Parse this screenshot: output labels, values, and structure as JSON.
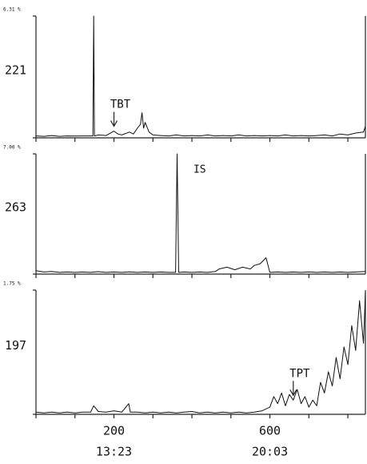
{
  "chart_data": [
    {
      "type": "line",
      "scale_label": "6.31 %",
      "ion_label": "221",
      "xlim": [
        0,
        845
      ],
      "ylim": [
        0,
        6.31
      ],
      "xticks": [
        0,
        100,
        200,
        300,
        400,
        500,
        600,
        700,
        800
      ],
      "x": [
        0,
        20,
        40,
        60,
        80,
        100,
        120,
        140,
        146,
        148,
        150,
        160,
        180,
        200,
        210,
        220,
        240,
        250,
        260,
        268,
        272,
        276,
        280,
        290,
        300,
        320,
        340,
        360,
        380,
        400,
        420,
        440,
        460,
        480,
        500,
        520,
        540,
        560,
        580,
        600,
        620,
        640,
        660,
        680,
        700,
        720,
        740,
        760,
        780,
        800,
        820,
        840,
        845
      ],
      "values": [
        0.1,
        0.08,
        0.12,
        0.08,
        0.1,
        0.09,
        0.1,
        0.1,
        0.1,
        6.31,
        0.1,
        0.15,
        0.12,
        0.35,
        0.2,
        0.15,
        0.3,
        0.2,
        0.5,
        0.7,
        1.3,
        0.5,
        0.8,
        0.3,
        0.15,
        0.12,
        0.1,
        0.15,
        0.1,
        0.12,
        0.1,
        0.15,
        0.1,
        0.12,
        0.1,
        0.15,
        0.1,
        0.12,
        0.1,
        0.12,
        0.1,
        0.15,
        0.1,
        0.12,
        0.1,
        0.12,
        0.15,
        0.1,
        0.2,
        0.15,
        0.25,
        0.3,
        0.6
      ],
      "annotations": [
        {
          "text": "TBT",
          "x": 200,
          "arrow": true
        }
      ]
    },
    {
      "type": "line",
      "scale_label": "7.00 %",
      "ion_label": "263",
      "xlim": [
        0,
        845
      ],
      "ylim": [
        0,
        7.0
      ],
      "xticks": [
        0,
        100,
        200,
        300,
        400,
        500,
        600,
        700,
        800
      ],
      "x": [
        0,
        20,
        40,
        60,
        80,
        100,
        120,
        140,
        160,
        180,
        200,
        220,
        240,
        260,
        280,
        300,
        320,
        340,
        358,
        362,
        366,
        380,
        400,
        420,
        440,
        460,
        470,
        490,
        510,
        530,
        550,
        560,
        575,
        590,
        600,
        620,
        640,
        660,
        680,
        700,
        720,
        740,
        760,
        780,
        800,
        820,
        845
      ],
      "values": [
        0.2,
        0.12,
        0.15,
        0.1,
        0.12,
        0.1,
        0.12,
        0.1,
        0.14,
        0.1,
        0.12,
        0.1,
        0.13,
        0.1,
        0.12,
        0.1,
        0.12,
        0.1,
        0.1,
        7.0,
        0.1,
        0.12,
        0.1,
        0.12,
        0.1,
        0.15,
        0.3,
        0.4,
        0.25,
        0.4,
        0.3,
        0.5,
        0.6,
        0.95,
        0.1,
        0.12,
        0.1,
        0.12,
        0.1,
        0.13,
        0.1,
        0.12,
        0.1,
        0.12,
        0.1,
        0.12,
        0.15
      ],
      "annotations": [
        {
          "text": "IS",
          "x": 420,
          "arrow": false
        }
      ]
    },
    {
      "type": "line",
      "scale_label": "1.75 %",
      "ion_label": "197",
      "xlim": [
        0,
        845
      ],
      "ylim": [
        0,
        1.75
      ],
      "xticks": [
        0,
        100,
        200,
        300,
        400,
        500,
        600,
        700,
        800
      ],
      "xtick_labels": [
        {
          "value": 200,
          "label": "200"
        },
        {
          "value": 600,
          "label": "600"
        }
      ],
      "time_labels": [
        {
          "value": 200,
          "label": "13:23"
        },
        {
          "value": 600,
          "label": "20:03"
        }
      ],
      "x": [
        0,
        20,
        40,
        60,
        80,
        100,
        120,
        140,
        148,
        160,
        180,
        200,
        220,
        238,
        242,
        260,
        280,
        300,
        320,
        340,
        360,
        380,
        400,
        420,
        440,
        460,
        480,
        500,
        520,
        540,
        560,
        580,
        600,
        610,
        620,
        630,
        640,
        650,
        660,
        670,
        680,
        690,
        700,
        710,
        720,
        730,
        740,
        750,
        760,
        770,
        780,
        790,
        800,
        810,
        820,
        830,
        840,
        845
      ],
      "values": [
        0.03,
        0.02,
        0.03,
        0.02,
        0.03,
        0.02,
        0.03,
        0.03,
        0.12,
        0.04,
        0.03,
        0.05,
        0.03,
        0.15,
        0.03,
        0.03,
        0.02,
        0.03,
        0.02,
        0.03,
        0.02,
        0.03,
        0.04,
        0.02,
        0.03,
        0.02,
        0.03,
        0.02,
        0.03,
        0.02,
        0.03,
        0.05,
        0.1,
        0.25,
        0.15,
        0.3,
        0.12,
        0.28,
        0.2,
        0.35,
        0.15,
        0.25,
        0.1,
        0.2,
        0.12,
        0.45,
        0.3,
        0.6,
        0.4,
        0.8,
        0.5,
        0.95,
        0.7,
        1.25,
        0.9,
        1.6,
        1.0,
        1.72
      ],
      "annotations": [
        {
          "text": "TPT",
          "x": 660,
          "arrow": true
        }
      ]
    }
  ]
}
